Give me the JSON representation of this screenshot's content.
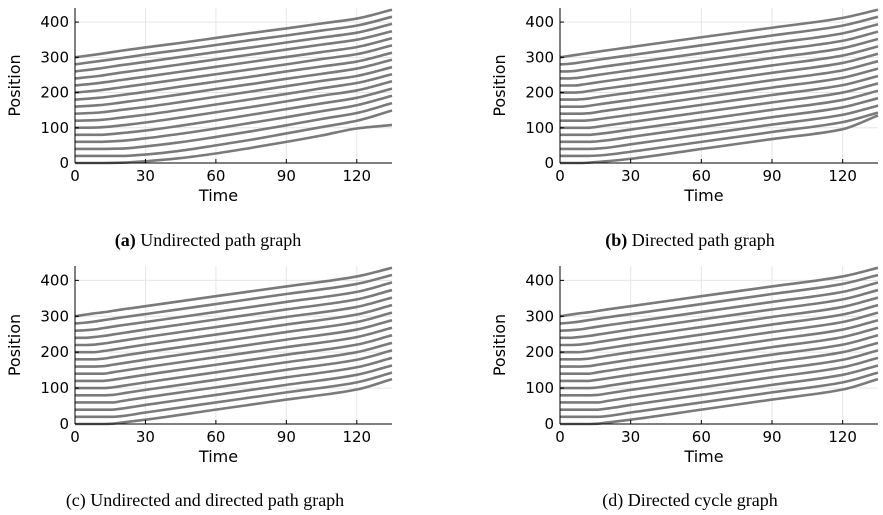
{
  "chart_data": [
    {
      "type": "line",
      "panel_label": "(a)",
      "caption": "Undirected path graph",
      "xlabel": "Time",
      "ylabel": "Position",
      "xlim": [
        0,
        135
      ],
      "ylim": [
        0,
        440
      ],
      "xticks": [
        0,
        30,
        60,
        90,
        120
      ],
      "yticks": [
        0,
        100,
        200,
        300,
        400
      ],
      "grid": true,
      "legend": "none",
      "line_color": "#7a7a7a",
      "x": [
        0,
        10,
        20,
        30,
        45,
        60,
        75,
        90,
        105,
        120,
        135
      ],
      "series": [
        {
          "values": [
            300,
            309,
            319,
            328,
            341,
            355,
            369,
            382,
            396,
            410,
            435
          ]
        },
        {
          "values": [
            280,
            289,
            298,
            308,
            321,
            335,
            349,
            362,
            376,
            390,
            415
          ]
        },
        {
          "values": [
            260,
            268,
            278,
            287,
            301,
            315,
            328,
            342,
            356,
            370,
            395
          ]
        },
        {
          "values": [
            240,
            247,
            257,
            266,
            280,
            294,
            308,
            322,
            336,
            350,
            374
          ]
        },
        {
          "values": [
            220,
            227,
            236,
            245,
            259,
            273,
            287,
            301,
            315,
            329,
            354
          ]
        },
        {
          "values": [
            200,
            206,
            215,
            224,
            238,
            252,
            266,
            280,
            295,
            309,
            334
          ]
        },
        {
          "values": [
            180,
            185,
            193,
            202,
            217,
            231,
            245,
            260,
            274,
            288,
            313
          ]
        },
        {
          "values": [
            160,
            164,
            172,
            181,
            195,
            210,
            224,
            239,
            253,
            268,
            293
          ]
        },
        {
          "values": [
            140,
            143,
            151,
            159,
            173,
            188,
            203,
            218,
            233,
            247,
            272
          ]
        },
        {
          "values": [
            120,
            122,
            129,
            137,
            151,
            166,
            181,
            196,
            212,
            227,
            252
          ]
        },
        {
          "values": [
            100,
            101,
            107,
            115,
            129,
            144,
            159,
            175,
            191,
            206,
            232
          ]
        },
        {
          "values": [
            80,
            80,
            85,
            92,
            106,
            121,
            137,
            153,
            169,
            185,
            211
          ]
        },
        {
          "values": [
            60,
            60,
            63,
            70,
            83,
            98,
            114,
            130,
            147,
            164,
            191
          ]
        },
        {
          "values": [
            40,
            40,
            41,
            47,
            59,
            74,
            90,
            107,
            125,
            142,
            170
          ]
        },
        {
          "values": [
            20,
            20,
            20,
            24,
            35,
            50,
            66,
            84,
            102,
            120,
            149
          ]
        },
        {
          "values": [
            0,
            0,
            1,
            5,
            14,
            27,
            43,
            60,
            78,
            98,
            108
          ]
        }
      ]
    },
    {
      "type": "line",
      "panel_label": "(b)",
      "caption": "Directed path graph",
      "xlabel": "Time",
      "ylabel": "Position",
      "xlim": [
        0,
        135
      ],
      "ylim": [
        0,
        440
      ],
      "xticks": [
        0,
        30,
        60,
        90,
        120
      ],
      "yticks": [
        0,
        100,
        200,
        300,
        400
      ],
      "grid": true,
      "legend": "none",
      "line_color": "#7a7a7a",
      "x": [
        0,
        3,
        6,
        9,
        12,
        18,
        30,
        60,
        90,
        120,
        135
      ],
      "series": [
        {
          "values": [
            300,
            303,
            306,
            309,
            312,
            318,
            329,
            357,
            384,
            412,
            435
          ]
        },
        {
          "values": [
            280,
            281,
            283,
            286,
            289,
            295,
            306,
            334,
            362,
            390,
            415
          ]
        },
        {
          "values": [
            260,
            260,
            261,
            264,
            267,
            273,
            284,
            312,
            340,
            368,
            394
          ]
        },
        {
          "values": [
            240,
            240,
            241,
            243,
            246,
            252,
            263,
            291,
            319,
            347,
            373
          ]
        },
        {
          "values": [
            220,
            220,
            220,
            222,
            225,
            231,
            242,
            270,
            298,
            326,
            352
          ]
        },
        {
          "values": [
            200,
            200,
            200,
            201,
            204,
            210,
            221,
            249,
            277,
            305,
            331
          ]
        },
        {
          "values": [
            180,
            180,
            180,
            181,
            183,
            189,
            200,
            228,
            256,
            284,
            310
          ]
        },
        {
          "values": [
            160,
            160,
            160,
            160,
            162,
            168,
            179,
            207,
            235,
            263,
            289
          ]
        },
        {
          "values": [
            140,
            140,
            140,
            140,
            141,
            147,
            158,
            186,
            214,
            242,
            268
          ]
        },
        {
          "values": [
            120,
            120,
            120,
            120,
            121,
            126,
            137,
            165,
            193,
            221,
            247
          ]
        },
        {
          "values": [
            100,
            100,
            100,
            100,
            100,
            105,
            116,
            144,
            172,
            200,
            226
          ]
        },
        {
          "values": [
            80,
            80,
            80,
            80,
            80,
            84,
            95,
            123,
            151,
            179,
            205
          ]
        },
        {
          "values": [
            60,
            60,
            60,
            60,
            60,
            63,
            74,
            102,
            130,
            158,
            184
          ]
        },
        {
          "values": [
            40,
            40,
            40,
            40,
            40,
            42,
            53,
            81,
            109,
            137,
            163
          ]
        },
        {
          "values": [
            20,
            20,
            20,
            20,
            20,
            22,
            32,
            60,
            88,
            116,
            143
          ]
        },
        {
          "values": [
            0,
            0,
            0,
            0,
            1,
            4,
            12,
            40,
            68,
            96,
            135
          ]
        }
      ]
    },
    {
      "type": "line",
      "panel_label": "(c)",
      "caption": "Undirected and directed path graph",
      "xlabel": "Time",
      "ylabel": "Position",
      "xlim": [
        0,
        135
      ],
      "ylim": [
        0,
        440
      ],
      "xticks": [
        0,
        30,
        60,
        90,
        120
      ],
      "yticks": [
        0,
        100,
        200,
        300,
        400
      ],
      "grid": true,
      "legend": "none",
      "line_color": "#7a7a7a",
      "x": [
        0,
        4,
        8,
        12,
        16,
        20,
        30,
        60,
        90,
        120,
        135
      ],
      "series": [
        {
          "values": [
            300,
            304,
            308,
            311,
            315,
            319,
            328,
            356,
            383,
            411,
            435
          ]
        },
        {
          "values": [
            280,
            282,
            285,
            289,
            293,
            297,
            306,
            334,
            362,
            390,
            415
          ]
        },
        {
          "values": [
            260,
            261,
            263,
            267,
            271,
            275,
            284,
            312,
            340,
            368,
            394
          ]
        },
        {
          "values": [
            240,
            240,
            242,
            245,
            249,
            253,
            263,
            291,
            319,
            347,
            373
          ]
        },
        {
          "values": [
            220,
            220,
            221,
            224,
            228,
            232,
            242,
            270,
            298,
            326,
            352
          ]
        },
        {
          "values": [
            200,
            200,
            200,
            203,
            207,
            211,
            221,
            249,
            277,
            305,
            331
          ]
        },
        {
          "values": [
            180,
            180,
            180,
            182,
            186,
            190,
            200,
            228,
            256,
            284,
            310
          ]
        },
        {
          "values": [
            160,
            160,
            160,
            161,
            165,
            169,
            179,
            207,
            235,
            263,
            289
          ]
        },
        {
          "values": [
            140,
            140,
            140,
            140,
            144,
            148,
            158,
            186,
            214,
            242,
            268
          ]
        },
        {
          "values": [
            120,
            120,
            120,
            120,
            123,
            127,
            137,
            165,
            193,
            221,
            247
          ]
        },
        {
          "values": [
            100,
            100,
            100,
            100,
            102,
            106,
            116,
            144,
            172,
            200,
            226
          ]
        },
        {
          "values": [
            80,
            80,
            80,
            80,
            81,
            85,
            95,
            123,
            151,
            179,
            205
          ]
        },
        {
          "values": [
            60,
            60,
            60,
            60,
            60,
            64,
            74,
            102,
            130,
            158,
            184
          ]
        },
        {
          "values": [
            40,
            40,
            40,
            40,
            40,
            43,
            53,
            81,
            109,
            137,
            163
          ]
        },
        {
          "values": [
            20,
            20,
            20,
            20,
            20,
            22,
            32,
            60,
            88,
            116,
            143
          ]
        },
        {
          "values": [
            0,
            0,
            0,
            0,
            1,
            4,
            12,
            40,
            68,
            96,
            125
          ]
        }
      ]
    },
    {
      "type": "line",
      "panel_label": "(d)",
      "caption": "Directed cycle graph",
      "xlabel": "Time",
      "ylabel": "Position",
      "xlim": [
        0,
        135
      ],
      "ylim": [
        0,
        440
      ],
      "xticks": [
        0,
        30,
        60,
        90,
        120
      ],
      "yticks": [
        0,
        100,
        200,
        300,
        400
      ],
      "grid": true,
      "legend": "none",
      "line_color": "#7a7a7a",
      "x": [
        0,
        4,
        8,
        12,
        16,
        20,
        30,
        60,
        90,
        120,
        135
      ],
      "series": [
        {
          "values": [
            300,
            304,
            308,
            311,
            315,
            319,
            328,
            356,
            383,
            411,
            435
          ]
        },
        {
          "values": [
            280,
            282,
            285,
            289,
            293,
            297,
            306,
            334,
            362,
            390,
            415
          ]
        },
        {
          "values": [
            260,
            261,
            263,
            267,
            271,
            275,
            284,
            312,
            340,
            368,
            394
          ]
        },
        {
          "values": [
            240,
            240,
            242,
            245,
            249,
            253,
            263,
            291,
            319,
            347,
            373
          ]
        },
        {
          "values": [
            220,
            220,
            221,
            224,
            228,
            232,
            242,
            270,
            298,
            326,
            352
          ]
        },
        {
          "values": [
            200,
            200,
            200,
            203,
            207,
            211,
            221,
            249,
            277,
            305,
            331
          ]
        },
        {
          "values": [
            180,
            180,
            180,
            182,
            186,
            190,
            200,
            228,
            256,
            284,
            310
          ]
        },
        {
          "values": [
            160,
            160,
            160,
            161,
            165,
            169,
            179,
            207,
            235,
            263,
            289
          ]
        },
        {
          "values": [
            140,
            140,
            140,
            140,
            144,
            148,
            158,
            186,
            214,
            242,
            268
          ]
        },
        {
          "values": [
            120,
            120,
            120,
            120,
            123,
            127,
            137,
            165,
            193,
            221,
            247
          ]
        },
        {
          "values": [
            100,
            100,
            100,
            100,
            102,
            106,
            116,
            144,
            172,
            200,
            226
          ]
        },
        {
          "values": [
            80,
            80,
            80,
            80,
            81,
            85,
            95,
            123,
            151,
            179,
            205
          ]
        },
        {
          "values": [
            60,
            60,
            60,
            60,
            60,
            64,
            74,
            102,
            130,
            158,
            184
          ]
        },
        {
          "values": [
            40,
            40,
            40,
            40,
            40,
            43,
            53,
            81,
            109,
            137,
            163
          ]
        },
        {
          "values": [
            20,
            20,
            20,
            20,
            20,
            22,
            32,
            60,
            88,
            116,
            143
          ]
        },
        {
          "values": [
            0,
            0,
            0,
            0,
            1,
            4,
            12,
            40,
            68,
            96,
            125
          ]
        }
      ]
    }
  ]
}
